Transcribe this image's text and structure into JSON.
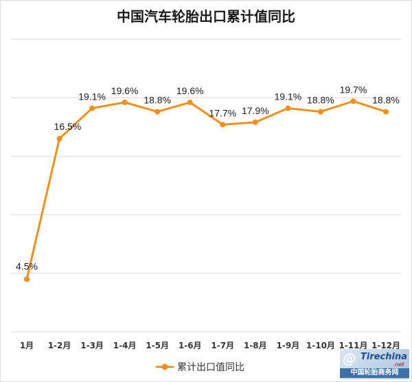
{
  "chart_data": {
    "type": "line",
    "title": "中国汽车轮胎出口累计值同比",
    "categories": [
      "1月",
      "1-2月",
      "1-3月",
      "1-4月",
      "1-5月",
      "1-6月",
      "1-7月",
      "1-8月",
      "1-9月",
      "1-10月",
      "1-11月",
      "1-12月"
    ],
    "series": [
      {
        "name": "累计出口值同比",
        "values": [
          4.5,
          16.5,
          19.1,
          19.6,
          18.8,
          19.6,
          17.7,
          17.9,
          19.1,
          18.8,
          19.7,
          18.8
        ],
        "labels": [
          "4.5%",
          "16.5%",
          "19.1%",
          "19.6%",
          "18.8%",
          "19.6%",
          "17.7%",
          "17.9%",
          "19.1%",
          "18.8%",
          "19.7%",
          "18.8%"
        ],
        "color": "#f39019"
      }
    ],
    "ylim": [
      0,
      25
    ],
    "yticks": [
      0,
      5,
      10,
      15,
      20,
      25
    ],
    "y_tick_labels_visible": false,
    "grid": true,
    "gridline_color": "#d9d9d9",
    "legend_position": "bottom"
  },
  "watermark": {
    "logo": "@",
    "brand": "Tirechina",
    "suffix": ".net",
    "chinese": "中国轮胎商务网"
  }
}
